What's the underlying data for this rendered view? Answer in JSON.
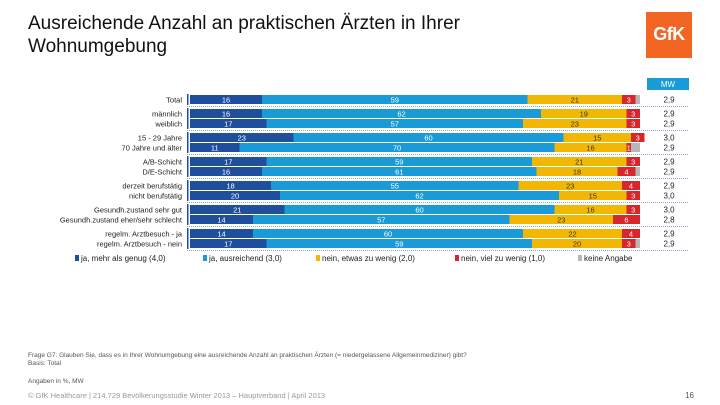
{
  "title": "Ausreichende Anzahl an praktischen Ärzten in Ihrer Wohnumgebung",
  "logo_text": "GfK",
  "colors": {
    "logo": "#f26522",
    "series": [
      "#1f4e9c",
      "#1a9ad6",
      "#f2b705",
      "#d9262b",
      "#b7b7b7"
    ],
    "mw_header_bg": "#1a9ad6",
    "separator": "#1f4e9c"
  },
  "chart_data": {
    "type": "bar",
    "orientation": "horizontal",
    "stacked": true,
    "mw_header": "MW",
    "xlim": [
      0,
      100
    ],
    "series_names": [
      "ja, mehr als genug (4,0)",
      "ja, ausreichend (3,0)",
      "nein, etwas zu wenig (2,0)",
      "nein, viel zu wenig (1,0)",
      "keine Angabe"
    ],
    "groups": [
      {
        "rows": [
          {
            "label": "Total",
            "values": [
              16,
              59,
              21,
              3,
              1
            ],
            "labels": [
              "16",
              "59",
              "21",
              "3",
              ""
            ],
            "mw": "2,9"
          }
        ]
      },
      {
        "rows": [
          {
            "label": "männlich",
            "values": [
              16,
              62,
              19,
              3,
              0
            ],
            "labels": [
              "16",
              "62",
              "19",
              "3",
              ""
            ],
            "mw": "2,9"
          },
          {
            "label": "weiblich",
            "values": [
              17,
              57,
              23,
              3,
              0
            ],
            "labels": [
              "17",
              "57",
              "23",
              "3",
              ""
            ],
            "mw": "2,9"
          }
        ]
      },
      {
        "rows": [
          {
            "label": "15 - 29 Jahre",
            "values": [
              23,
              60,
              15,
              3,
              0
            ],
            "labels": [
              "23",
              "60",
              "15",
              "3",
              ""
            ],
            "mw": "3,0"
          },
          {
            "label": "70 Jahre und älter",
            "values": [
              11,
              70,
              16,
              1,
              2
            ],
            "labels": [
              "11",
              "70",
              "16",
              "1",
              ""
            ],
            "mw": "2,9"
          }
        ]
      },
      {
        "rows": [
          {
            "label": "A/B-Schicht",
            "values": [
              17,
              59,
              21,
              3,
              0
            ],
            "labels": [
              "17",
              "59",
              "21",
              "3",
              ""
            ],
            "mw": "2,9"
          },
          {
            "label": "D/E-Schicht",
            "values": [
              16,
              61,
              18,
              4,
              1
            ],
            "labels": [
              "16",
              "61",
              "18",
              "4",
              ""
            ],
            "mw": "2,9"
          }
        ]
      },
      {
        "rows": [
          {
            "label": "derzeit berufstätig",
            "values": [
              18,
              55,
              23,
              4,
              0
            ],
            "labels": [
              "18",
              "55",
              "23",
              "4",
              ""
            ],
            "mw": "2,9"
          },
          {
            "label": "nicht berufstätig",
            "values": [
              20,
              62,
              15,
              3,
              0
            ],
            "labels": [
              "20",
              "62",
              "15",
              "3",
              ""
            ],
            "mw": "3,0"
          }
        ]
      },
      {
        "rows": [
          {
            "label": "Gesundh.zustand sehr gut",
            "values": [
              21,
              60,
              16,
              3,
              0
            ],
            "labels": [
              "21",
              "60",
              "16",
              "3",
              ""
            ],
            "mw": "3,0"
          },
          {
            "label": "Gesundh.zustand eher/sehr schlecht",
            "values": [
              14,
              57,
              23,
              6,
              0
            ],
            "labels": [
              "14",
              "57",
              "23",
              "6",
              ""
            ],
            "mw": "2,8"
          }
        ]
      },
      {
        "rows": [
          {
            "label": "regelm. Arztbesuch - ja",
            "values": [
              14,
              60,
              22,
              4,
              0
            ],
            "labels": [
              "14",
              "60",
              "22",
              "4",
              ""
            ],
            "mw": "2,9"
          },
          {
            "label": "regelm. Arztbesuch - nein",
            "values": [
              17,
              59,
              20,
              3,
              1
            ],
            "labels": [
              "17",
              "59",
              "20",
              "3",
              ""
            ],
            "mw": "2,9"
          }
        ]
      }
    ]
  },
  "question": "Frage G7: Glauben Sie, dass es in Ihrer Wohnumgebung eine ausreichende Anzahl an praktischen Ärzten (= niedergelassene Allgemeinmediziner) gibt?",
  "basis": "Basis: Total",
  "units": "Angaben in %, MW",
  "footer": "© GfK Healthcare | 214.729 Bevölkerungsstudie Winter 2013 – Hauptverband | April 2013",
  "page_number": "16"
}
